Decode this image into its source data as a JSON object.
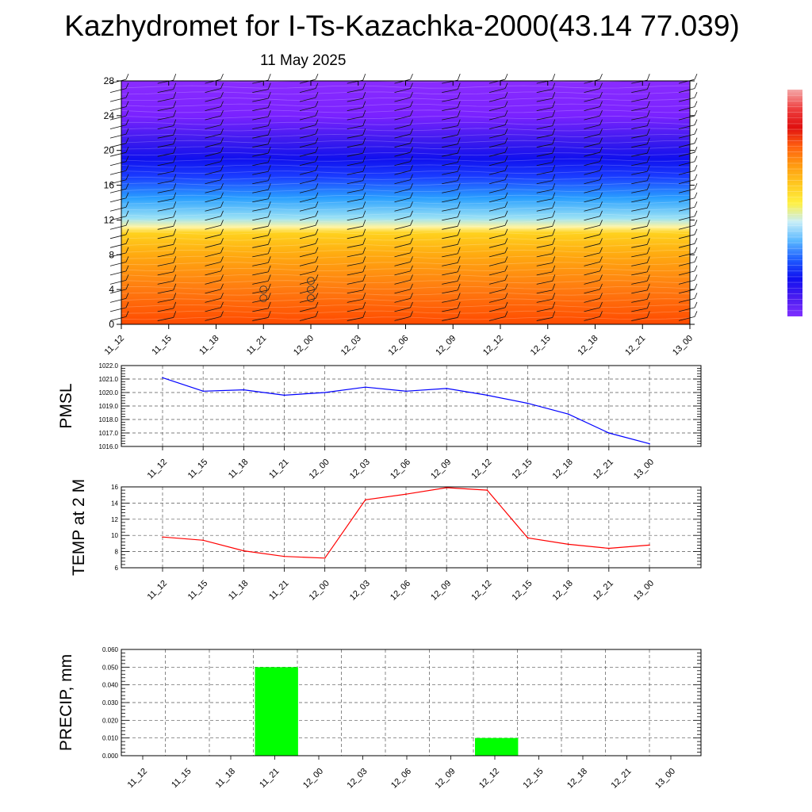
{
  "title": "Kazhydromet for I-Ts-Kazachka-2000(43.14 77.039)",
  "date": "11 May 2025",
  "chart_data": [
    {
      "type": "heatmap",
      "name": "cross-section",
      "x_ticks": [
        "11_12",
        "11_15",
        "11_18",
        "11_21",
        "12_00",
        "12_03",
        "12_06",
        "12_09",
        "12_12",
        "12_15",
        "12_18",
        "12_21",
        "13_00"
      ],
      "y_ticks": [
        0,
        4,
        8,
        12,
        16,
        20,
        24,
        28
      ],
      "ylim": [
        0,
        28
      ],
      "color_stops": [
        {
          "level": 0,
          "color": "#ff4a00"
        },
        {
          "level": 4,
          "color": "#ff7a10"
        },
        {
          "level": 8,
          "color": "#ffaa10"
        },
        {
          "level": 10.5,
          "color": "#ffd21e"
        },
        {
          "level": 11.2,
          "color": "#fff4a0"
        },
        {
          "level": 12.2,
          "color": "#9be2f5"
        },
        {
          "level": 14.5,
          "color": "#2aa0ff"
        },
        {
          "level": 17,
          "color": "#1a3cff"
        },
        {
          "level": 19,
          "color": "#1010ee"
        },
        {
          "level": 21,
          "color": "#3a1aee"
        },
        {
          "level": 24,
          "color": "#7a22ff"
        },
        {
          "level": 28,
          "color": "#8a2cff"
        }
      ],
      "colorbar_colors": [
        "#f4a8a8",
        "#ee4040",
        "#e01010",
        "#ff6010",
        "#ff9a10",
        "#ffc820",
        "#fff040",
        "#c8eef8",
        "#5ab8ff",
        "#1e5cff",
        "#1010f0",
        "#4a1cf0",
        "#8030ff"
      ],
      "markers": [
        {
          "x": "11_21",
          "levels": [
            3,
            4
          ]
        },
        {
          "x": "12_00",
          "levels": [
            3,
            4,
            5
          ]
        }
      ]
    },
    {
      "type": "line",
      "ylabel": "PMSL",
      "color": "#0000ff",
      "x": [
        "11_12",
        "11_15",
        "11_18",
        "11_21",
        "12_00",
        "12_03",
        "12_06",
        "12_09",
        "12_12",
        "12_15",
        "12_18",
        "12_21",
        "13_00"
      ],
      "values": [
        1021.1,
        1020.1,
        1020.2,
        1019.8,
        1020.0,
        1020.4,
        1020.1,
        1020.3,
        1019.8,
        1019.2,
        1018.4,
        1017.0,
        1016.2
      ],
      "ylim": [
        1016.0,
        1022.0
      ],
      "y_ticks": [
        "1016.0",
        "1017.0",
        "1018.0",
        "1019.0",
        "1020.0",
        "1021.0",
        "1022.0"
      ],
      "grid": true
    },
    {
      "type": "line",
      "ylabel": "TEMP at 2 M",
      "color": "#ff0000",
      "x": [
        "11_12",
        "11_15",
        "11_18",
        "11_21",
        "12_00",
        "12_03",
        "12_06",
        "12_09",
        "12_12",
        "12_15",
        "12_18",
        "12_21",
        "13_00"
      ],
      "values": [
        9.8,
        9.4,
        8.1,
        7.4,
        7.2,
        14.4,
        15.1,
        15.9,
        15.6,
        9.7,
        8.9,
        8.4,
        8.8
      ],
      "ylim": [
        6,
        16
      ],
      "y_ticks": [
        "6",
        "8",
        "10",
        "12",
        "14",
        "16"
      ],
      "grid": true
    },
    {
      "type": "bar",
      "ylabel": "PRECIP, mm",
      "color": "#00ff00",
      "categories": [
        "11_12",
        "11_15",
        "11_18",
        "11_21",
        "12_00",
        "12_03",
        "12_06",
        "12_09",
        "12_12",
        "12_15",
        "12_18",
        "12_21",
        "13_00"
      ],
      "values": [
        0,
        0,
        0,
        0.05,
        0,
        0,
        0,
        0,
        0.01,
        0,
        0,
        0,
        0
      ],
      "ylim": [
        0,
        0.06
      ],
      "y_ticks": [
        "0.000",
        "0.010",
        "0.020",
        "0.030",
        "0.040",
        "0.050",
        "0.060"
      ],
      "grid": true
    }
  ]
}
